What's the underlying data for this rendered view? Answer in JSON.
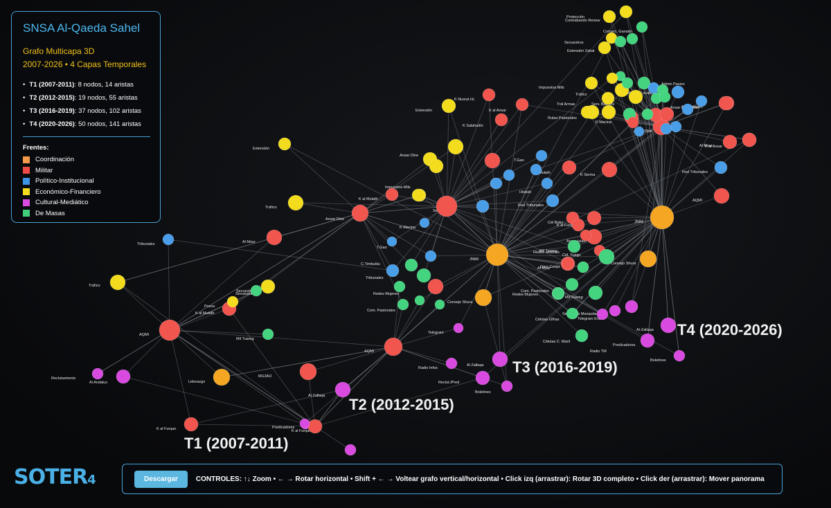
{
  "title": "SNSA Al-Qaeda Sahel",
  "subtitle": "Grafo Multicapa 3D",
  "period": "2007-2026 • 4 Capas Temporales",
  "layers": [
    {
      "name": "T1 (2007-2011)",
      "text": ": 8 nodos, 14 aristas"
    },
    {
      "name": "T2 (2012-2015)",
      "text": ": 19 nodos, 55 aristas"
    },
    {
      "name": "T3 (2016-2019)",
      "text": ": 37 nodos, 102 aristas"
    },
    {
      "name": "T4 (2020-2026)",
      "text": ": 50 nodos, 141 aristas"
    }
  ],
  "fronts_title": "Frentes:",
  "fronts": [
    {
      "label": "Coordinación",
      "color": "#f59a4a"
    },
    {
      "label": "Militar",
      "color": "#ef4a43"
    },
    {
      "label": "Político-Institucional",
      "color": "#3d93e6"
    },
    {
      "label": "Económico-Financiero",
      "color": "#f2dc1d"
    },
    {
      "label": "Cultural-Mediático",
      "color": "#d94be0"
    },
    {
      "label": "De Masas",
      "color": "#3fcf7a"
    }
  ],
  "layer_labels": [
    "T1 (2007-2011)",
    "T2 (2012-2015)",
    "T3 (2016-2019)",
    "T4 (2020-2026)"
  ],
  "node_labels": [
    "Tráfico",
    "Tribunales",
    "AQMI",
    "Al Andalus",
    "Reclutamiento",
    "Liderazgo",
    "K al Furqan",
    "Predicadores",
    "K al Furqan",
    "Al Mour",
    "Pozos",
    "K al Mulath",
    "Secuestros",
    "Mil Tuareg",
    "MUJAO",
    "Ansar Dine",
    "K al Mulath",
    "Extensión",
    "Tráfico",
    "Secuestros",
    "Impuestos Mils",
    "Serv. Básicos",
    "Ansar Dine",
    "K Macina",
    "T.Gao",
    "C.Timbuktu",
    "Tribunales",
    "Redes Mujeres",
    "Com. Pastorales",
    "Consejo Shura",
    "JNIM",
    "AQMI",
    "Al Zallaqa",
    "Radio Infos",
    "Telegram",
    "Reclut./Pred",
    "Boletines",
    "Al Zallaqa",
    "K Nusrat Isl.",
    "K al Ansar",
    "K Salahadin",
    "Extensión",
    "T.Gao",
    "K Mulath",
    "Hisbah",
    "K Serma",
    "Red Tribunales",
    "Cél Boko",
    "K al Furqan",
    "Ansar Islam",
    "Mil Tuareg",
    "Redes Jóvenes",
    "Cél. Tuago",
    "Al Mour",
    "Doro Coopt.",
    "Com. Pastorales",
    "Redes Mujeres",
    "Mil Tuareg",
    "Células Gfhas",
    "Células C. Marit",
    "Telegram Enc.",
    "Secciones Mezquitas",
    "Consejo Shura",
    "JNIM",
    "AQMI",
    "Al Mour",
    "K Salahadin",
    "K al Ansar",
    "Red Tribunales",
    "Protección",
    "Contrabando Renew",
    "Comerc. Ganado",
    "Secuestros",
    "Extensión Zakat",
    "Impuestos Mils",
    "Tráfico",
    "Trál Armas",
    "Rutas Pastorales",
    "K Macina",
    "Serv. Básicos",
    "Medios Locales",
    "Admin Pasivo",
    "Ansar Dine",
    "Al-Zallaqa",
    "Predicadores",
    "Radio TM",
    "Boletines",
    "Zakat Admin",
    "Ansar Dine Kidal"
  ],
  "controls": {
    "button": "Descargar",
    "text": "CONTROLES: ↑↓ Zoom • ← → Rotar horizontal • Shift + ← → Voltear grafo vertical/horizontal • Click izq (arrastrar): Rotar 3D completo • Click der (arrastrar): Mover panorama"
  },
  "logo": {
    "main": "SOTER",
    "sub": "4"
  }
}
